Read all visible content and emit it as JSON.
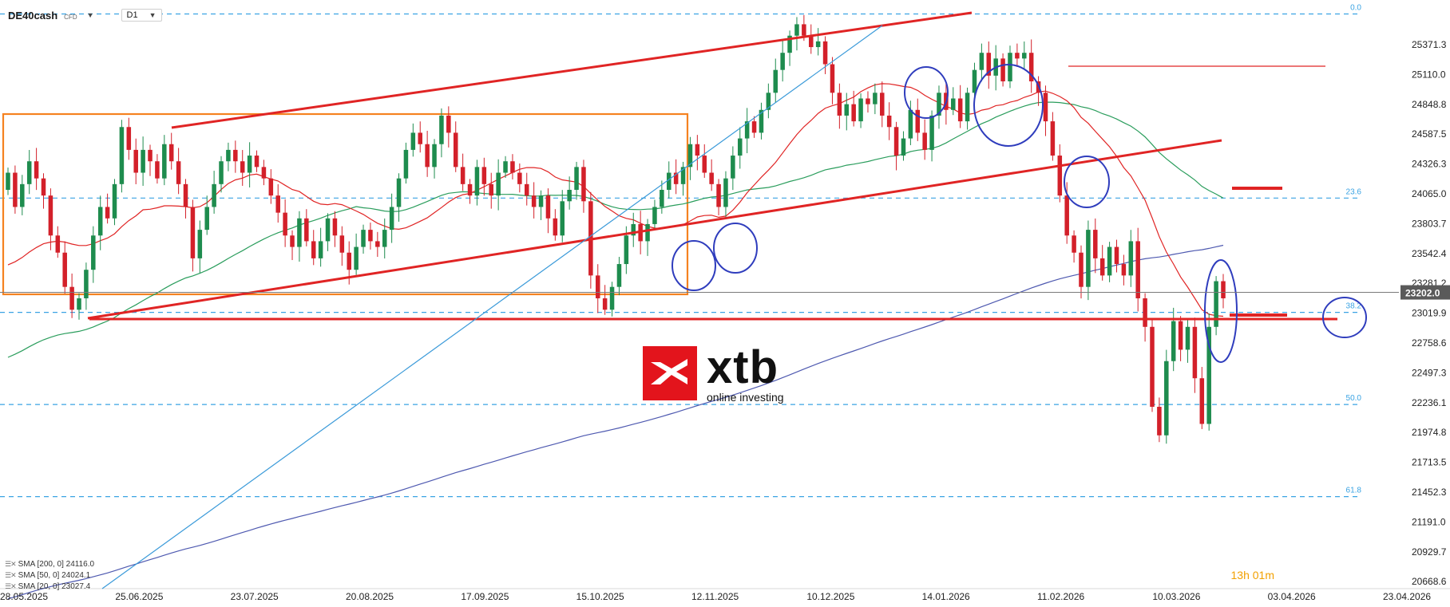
{
  "header": {
    "symbol": "DE40cash",
    "symbol_tag": "CFD",
    "timeframe": "D1"
  },
  "legend": [
    {
      "label": "SMA [200, 0] 24116.0",
      "color": "#4e59b0"
    },
    {
      "label": "SMA [50, 0] 24024.1",
      "color": "#2a9d5c"
    },
    {
      "label": "SMA [20, 0] 23027.4",
      "color": "#e02424"
    }
  ],
  "timer": "13h 01m",
  "logo": {
    "name": "xtb",
    "tagline": "online investing",
    "color": "#e3141c"
  },
  "chart_data": {
    "type": "candlestick",
    "instrument": "DE40cash",
    "timeframe": "D1",
    "ylim": [
      20668.6,
      25632.0
    ],
    "y_ticks": [
      25371.3,
      25110.0,
      24848.8,
      24587.5,
      24326.3,
      24065.0,
      23803.7,
      23542.4,
      23281.2,
      23019.9,
      22758.6,
      22497.3,
      22236.1,
      21974.8,
      21713.5,
      21452.3,
      21191.0,
      20929.7,
      20668.6
    ],
    "x_labels": [
      "28.05.2025",
      "25.06.2025",
      "23.07.2025",
      "20.08.2025",
      "17.09.2025",
      "15.10.2025",
      "12.11.2025",
      "10.12.2025",
      "14.01.2026",
      "11.02.2026",
      "10.03.2026",
      "03.04.2026",
      "23.04.2026"
    ],
    "current_price": 23202.0,
    "current_price_label": "23202.0",
    "fibonacci": [
      {
        "level": "0.0",
        "price": 25640
      },
      {
        "level": "23.6",
        "price": 24028
      },
      {
        "level": "38.2",
        "price": 23027
      },
      {
        "level": "50.0",
        "price": 22220
      },
      {
        "level": "61.8",
        "price": 21413
      }
    ],
    "series": [
      {
        "name": "SMA [200, 0]",
        "last": 24116.0
      },
      {
        "name": "SMA [50, 0]",
        "last": 24024.1
      },
      {
        "name": "SMA [20, 0]",
        "last": 23027.4
      }
    ],
    "candles": [
      [
        24100,
        24250
      ],
      [
        24250,
        23950
      ],
      [
        23950,
        24150
      ],
      [
        24150,
        24350
      ],
      [
        24350,
        24200
      ],
      [
        24200,
        24050
      ],
      [
        24050,
        23700
      ],
      [
        23700,
        23550
      ],
      [
        23550,
        23250
      ],
      [
        23250,
        23050
      ],
      [
        23050,
        23150
      ],
      [
        23150,
        23400
      ],
      [
        23400,
        23700
      ],
      [
        23700,
        23950
      ],
      [
        23950,
        23850
      ],
      [
        23850,
        24150
      ],
      [
        24150,
        24650
      ],
      [
        24650,
        24450
      ],
      [
        24450,
        24250
      ],
      [
        24250,
        24450
      ],
      [
        24450,
        24350
      ],
      [
        24350,
        24200
      ],
      [
        24200,
        24500
      ],
      [
        24500,
        24350
      ],
      [
        24350,
        24150
      ],
      [
        24150,
        23950
      ],
      [
        23950,
        23500
      ],
      [
        23500,
        23750
      ],
      [
        23750,
        23950
      ],
      [
        23950,
        24150
      ],
      [
        24150,
        24350
      ],
      [
        24350,
        24450
      ],
      [
        24450,
        24350
      ],
      [
        24350,
        24250
      ],
      [
        24250,
        24400
      ],
      [
        24400,
        24300
      ],
      [
        24300,
        24200
      ],
      [
        24200,
        24050
      ],
      [
        24050,
        23900
      ],
      [
        23900,
        23700
      ],
      [
        23700,
        23600
      ],
      [
        23600,
        23850
      ],
      [
        23850,
        23650
      ],
      [
        23650,
        23500
      ],
      [
        23500,
        23650
      ],
      [
        23650,
        23850
      ],
      [
        23850,
        23700
      ],
      [
        23700,
        23550
      ],
      [
        23550,
        23400
      ],
      [
        23400,
        23600
      ],
      [
        23600,
        23750
      ],
      [
        23750,
        23650
      ],
      [
        23650,
        23600
      ],
      [
        23600,
        23750
      ],
      [
        23750,
        23950
      ],
      [
        23950,
        24200
      ],
      [
        24200,
        24450
      ],
      [
        24450,
        24600
      ],
      [
        24600,
        24500
      ],
      [
        24500,
        24300
      ],
      [
        24300,
        24500
      ],
      [
        24500,
        24750
      ],
      [
        24750,
        24600
      ],
      [
        24600,
        24300
      ],
      [
        24300,
        24150
      ],
      [
        24150,
        24050
      ],
      [
        24050,
        24300
      ],
      [
        24300,
        24150
      ],
      [
        24150,
        24050
      ],
      [
        24050,
        24250
      ],
      [
        24250,
        24350
      ],
      [
        24350,
        24250
      ],
      [
        24250,
        24150
      ],
      [
        24150,
        24050
      ],
      [
        24050,
        23950
      ],
      [
        23950,
        24050
      ],
      [
        24050,
        23850
      ],
      [
        23850,
        23700
      ],
      [
        23700,
        24000
      ],
      [
        24000,
        24100
      ],
      [
        24100,
        24300
      ],
      [
        24300,
        24000
      ],
      [
        24000,
        23350
      ],
      [
        23350,
        23150
      ],
      [
        23150,
        23050
      ],
      [
        23050,
        23250
      ],
      [
        23250,
        23450
      ],
      [
        23450,
        23700
      ],
      [
        23700,
        23800
      ],
      [
        23800,
        23650
      ],
      [
        23650,
        23800
      ],
      [
        23800,
        23950
      ],
      [
        23950,
        24100
      ],
      [
        24100,
        24250
      ],
      [
        24250,
        24150
      ],
      [
        24150,
        24300
      ],
      [
        24300,
        24500
      ],
      [
        24500,
        24400
      ],
      [
        24400,
        24250
      ],
      [
        24250,
        24150
      ],
      [
        24150,
        23950
      ],
      [
        23950,
        24200
      ],
      [
        24200,
        24400
      ],
      [
        24400,
        24550
      ],
      [
        24550,
        24700
      ],
      [
        24700,
        24600
      ],
      [
        24600,
        24800
      ],
      [
        24800,
        24950
      ],
      [
        24950,
        25150
      ],
      [
        25150,
        25300
      ],
      [
        25300,
        25450
      ],
      [
        25450,
        25550
      ],
      [
        25550,
        25450
      ],
      [
        25450,
        25350
      ],
      [
        25350,
        25400
      ],
      [
        25400,
        25200
      ],
      [
        25200,
        24950
      ],
      [
        24950,
        24750
      ],
      [
        24750,
        24850
      ],
      [
        24850,
        24700
      ],
      [
        24700,
        24900
      ],
      [
        24900,
        24850
      ],
      [
        24850,
        24950
      ],
      [
        24950,
        24750
      ],
      [
        24750,
        24650
      ],
      [
        24650,
        24400
      ],
      [
        24400,
        24550
      ],
      [
        24550,
        24800
      ],
      [
        24800,
        24600
      ],
      [
        24600,
        24450
      ],
      [
        24450,
        24750
      ],
      [
        24750,
        24950
      ],
      [
        24950,
        24800
      ],
      [
        24800,
        24900
      ],
      [
        24900,
        24700
      ],
      [
        24700,
        24950
      ],
      [
        24950,
        25150
      ],
      [
        25150,
        25300
      ],
      [
        25300,
        25100
      ],
      [
        25100,
        25250
      ],
      [
        25250,
        25050
      ],
      [
        25050,
        25300
      ],
      [
        25300,
        25250
      ],
      [
        25250,
        25300
      ],
      [
        25300,
        25050
      ],
      [
        25050,
        24950
      ],
      [
        24950,
        24700
      ],
      [
        24700,
        24400
      ],
      [
        24400,
        24050
      ],
      [
        24050,
        23700
      ],
      [
        23700,
        23550
      ],
      [
        23550,
        23250
      ],
      [
        23250,
        23750
      ],
      [
        23750,
        23500
      ],
      [
        23500,
        23350
      ],
      [
        23350,
        23600
      ],
      [
        23600,
        23450
      ],
      [
        23450,
        23350
      ],
      [
        23350,
        23650
      ],
      [
        23650,
        23150
      ],
      [
        23150,
        22900
      ],
      [
        22900,
        22200
      ],
      [
        22200,
        21950
      ],
      [
        21950,
        22600
      ],
      [
        22600,
        22950
      ],
      [
        22950,
        22700
      ],
      [
        22700,
        22900
      ],
      [
        22900,
        22450
      ],
      [
        22450,
        22050
      ],
      [
        22050,
        22900
      ],
      [
        22900,
        23300
      ],
      [
        23300,
        23150
      ]
    ]
  }
}
